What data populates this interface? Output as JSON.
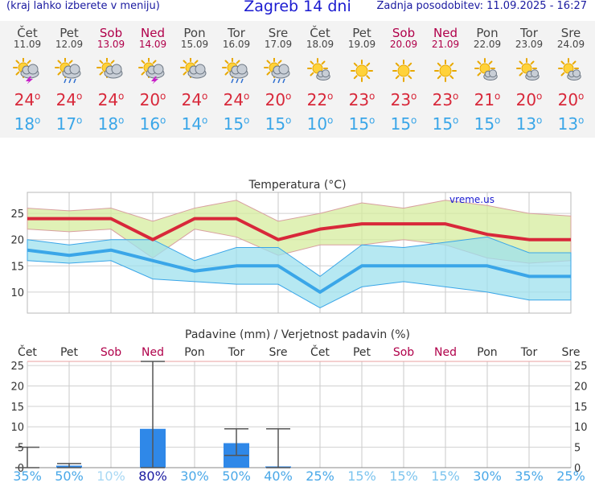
{
  "header": {
    "menu_hint": "(kraj lahko izberete v meniju)",
    "title": "Zagreb 14 dni",
    "updated": "Zadnja posodobitev: 11.09.2025 - 16:27"
  },
  "days": [
    {
      "name": "Čet",
      "date": "11.09",
      "weekend": false,
      "icon": "sun-cloud-storm-icon",
      "max": "24",
      "min": "18",
      "prob": "35%"
    },
    {
      "name": "Pet",
      "date": "12.09",
      "weekend": false,
      "icon": "sun-cloud-rain-icon",
      "max": "24",
      "min": "17",
      "prob": "50%"
    },
    {
      "name": "Sob",
      "date": "13.09",
      "weekend": true,
      "icon": "sun-cloud-icon",
      "max": "24",
      "min": "18",
      "prob": "10%"
    },
    {
      "name": "Ned",
      "date": "14.09",
      "weekend": true,
      "icon": "sun-cloud-storm-icon",
      "max": "20",
      "min": "16",
      "prob": "80%"
    },
    {
      "name": "Pon",
      "date": "15.09",
      "weekend": false,
      "icon": "sun-cloud-icon",
      "max": "24",
      "min": "14",
      "prob": "30%"
    },
    {
      "name": "Tor",
      "date": "16.09",
      "weekend": false,
      "icon": "sun-cloud-rain-icon",
      "max": "24",
      "min": "15",
      "prob": "50%"
    },
    {
      "name": "Sre",
      "date": "17.09",
      "weekend": false,
      "icon": "sun-cloud-rain-icon",
      "max": "20",
      "min": "15",
      "prob": "40%"
    },
    {
      "name": "Čet",
      "date": "18.09",
      "weekend": false,
      "icon": "sun-small-cloud-icon",
      "max": "22",
      "min": "10",
      "prob": "25%"
    },
    {
      "name": "Pet",
      "date": "19.09",
      "weekend": false,
      "icon": "sun-icon",
      "max": "23",
      "min": "15",
      "prob": "15%"
    },
    {
      "name": "Sob",
      "date": "20.09",
      "weekend": true,
      "icon": "sun-icon",
      "max": "23",
      "min": "15",
      "prob": "15%"
    },
    {
      "name": "Ned",
      "date": "21.09",
      "weekend": true,
      "icon": "sun-icon",
      "max": "23",
      "min": "15",
      "prob": "15%"
    },
    {
      "name": "Pon",
      "date": "22.09",
      "weekend": false,
      "icon": "sun-small-cloud-icon",
      "max": "21",
      "min": "15",
      "prob": "30%"
    },
    {
      "name": "Tor",
      "date": "23.09",
      "weekend": false,
      "icon": "sun-small-cloud-icon",
      "max": "20",
      "min": "13",
      "prob": "35%"
    },
    {
      "name": "Sre",
      "date": "24.09",
      "weekend": false,
      "icon": "sun-small-cloud-icon",
      "max": "20",
      "min": "13",
      "prob": "25%"
    }
  ],
  "chart_data": [
    {
      "type": "line",
      "title": "Temperatura (°C)",
      "watermark": "vreme.us",
      "y_ticks": [
        10,
        15,
        20,
        25
      ],
      "ylim": [
        6,
        29
      ],
      "x_days": 14,
      "series": [
        {
          "name": "max",
          "values": [
            24,
            24,
            24,
            20,
            24,
            24,
            20,
            22,
            23,
            23,
            23,
            21,
            20,
            20
          ],
          "color": "#d8283a"
        },
        {
          "name": "min",
          "values": [
            18,
            17,
            18,
            16,
            14,
            15,
            15,
            10,
            15,
            15,
            15,
            15,
            13,
            13
          ],
          "color": "#3aa6e8"
        }
      ],
      "max_band": {
        "upper": [
          26,
          25.5,
          26,
          23.5,
          26,
          27.5,
          23.5,
          25,
          27,
          26,
          27.5,
          26.5,
          25,
          24.5
        ],
        "lower": [
          22,
          21.5,
          22,
          16.5,
          22,
          20.5,
          17,
          19,
          19,
          20,
          19,
          16.5,
          15.5,
          16
        ],
        "color": "#d6ec9e"
      },
      "min_band": {
        "upper": [
          20,
          19,
          20,
          20,
          16,
          18.5,
          18.5,
          13,
          19,
          18.5,
          19.5,
          20.5,
          17.5,
          17.5
        ],
        "lower": [
          16,
          15.5,
          16,
          12.5,
          12,
          11.5,
          11.5,
          7,
          11,
          12,
          11,
          10,
          8.5,
          8.5
        ],
        "color": "#9de0ee"
      }
    },
    {
      "type": "bar",
      "title": "Padavine (mm) / Verjetnost padavin (%)",
      "y_ticks": [
        0,
        5,
        10,
        15,
        20,
        25
      ],
      "ylim": [
        0,
        26
      ],
      "values": [
        0,
        0.5,
        0,
        9.5,
        0,
        6,
        0.3,
        0,
        0,
        0,
        0,
        0,
        0,
        0
      ],
      "range_low": [
        0,
        0,
        null,
        0,
        null,
        3,
        0,
        null,
        null,
        null,
        null,
        null,
        null,
        null
      ],
      "range_high": [
        5,
        1,
        null,
        26,
        null,
        9.5,
        9.5,
        null,
        null,
        null,
        null,
        null,
        null,
        null
      ],
      "bar_color": "#2f88e8",
      "probability": [
        "35%",
        "50%",
        "10%",
        "80%",
        "30%",
        "50%",
        "40%",
        "25%",
        "15%",
        "15%",
        "15%",
        "30%",
        "35%",
        "25%"
      ]
    }
  ]
}
